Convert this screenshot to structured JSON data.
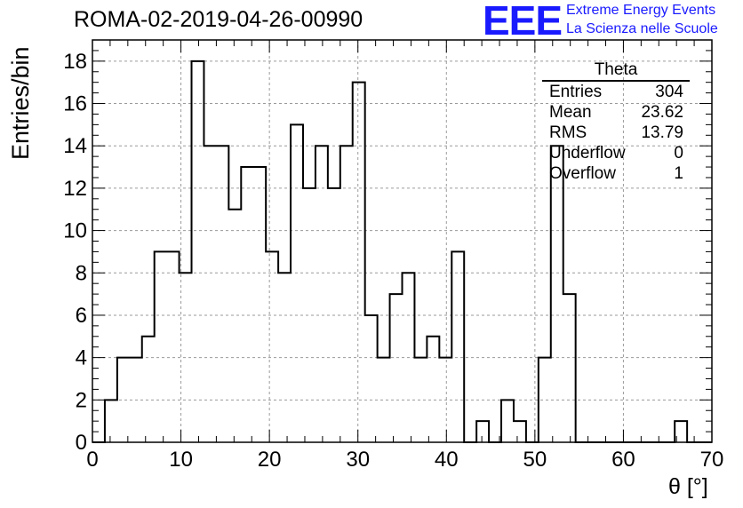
{
  "title": "ROMA-02-2019-04-26-00990",
  "logo": {
    "mark": "EEE",
    "line1": "Extreme Energy Events",
    "line2": "La Scienza nelle Scuole",
    "color": "#1a1aff"
  },
  "chart_data": {
    "type": "bar",
    "style": "step histogram",
    "xlabel": "θ [°]",
    "ylabel": "Entries/bin",
    "xlim": [
      0,
      70
    ],
    "ylim": [
      0,
      19
    ],
    "xticks": [
      0,
      10,
      20,
      30,
      40,
      50,
      60,
      70
    ],
    "yticks": [
      0,
      2,
      4,
      6,
      8,
      10,
      12,
      14,
      16,
      18
    ],
    "grid": true,
    "bin_edges_start": 0,
    "bin_width": 1.4,
    "values": [
      0,
      2,
      4,
      4,
      5,
      9,
      9,
      8,
      18,
      14,
      14,
      11,
      13,
      13,
      9,
      8,
      15,
      12,
      14,
      12,
      14,
      17,
      6,
      4,
      7,
      8,
      4,
      5,
      4,
      9,
      0,
      1,
      0,
      2,
      1,
      0,
      4,
      14,
      7,
      0,
      0,
      0,
      0,
      0,
      0,
      0,
      0,
      1,
      0,
      0
    ],
    "stats_box": {
      "title": "Theta",
      "rows": [
        {
          "label": "Entries",
          "value": "304"
        },
        {
          "label": "Mean",
          "value": "23.62"
        },
        {
          "label": "RMS",
          "value": "13.79"
        },
        {
          "label": "Underflow",
          "value": "0"
        },
        {
          "label": "Overflow",
          "value": "1"
        }
      ]
    }
  }
}
